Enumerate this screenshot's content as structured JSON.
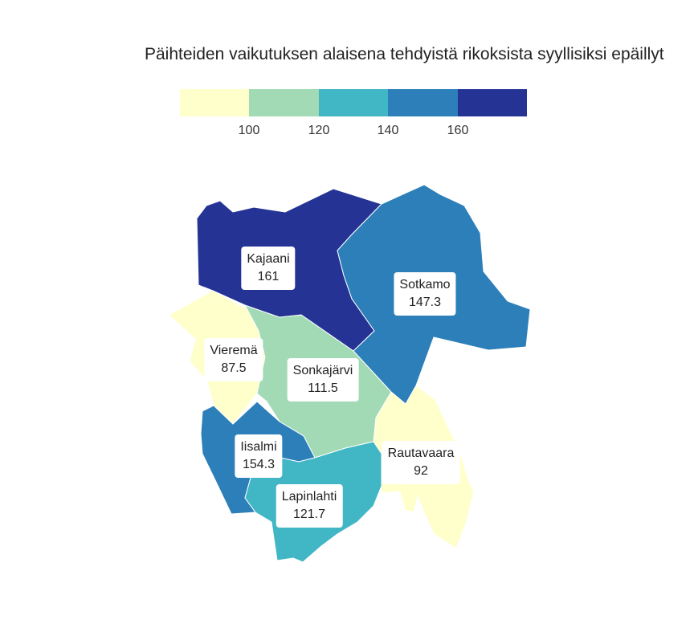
{
  "title": "Päihteiden vaikutuksen alaisena tehdyistä rikoksista syyllisiksi epäillyt",
  "legend": {
    "colors": [
      "#ffffcc",
      "#a1dab4",
      "#41b6c4",
      "#2c7fb8",
      "#253494"
    ],
    "ticks": [
      "100",
      "120",
      "140",
      "160"
    ]
  },
  "regions": [
    {
      "name": "Kajaani",
      "value": "161",
      "color": "#253494"
    },
    {
      "name": "Sotkamo",
      "value": "147.3",
      "color": "#2c7fb8"
    },
    {
      "name": "Vieremä",
      "value": "87.5",
      "color": "#ffffcc"
    },
    {
      "name": "Sonkajärvi",
      "value": "111.5",
      "color": "#a1dab4"
    },
    {
      "name": "Iisalmi",
      "value": "154.3",
      "color": "#2c7fb8"
    },
    {
      "name": "Rautavaara",
      "value": "92",
      "color": "#ffffcc"
    },
    {
      "name": "Lapinlahti",
      "value": "121.7",
      "color": "#41b6c4"
    }
  ]
}
